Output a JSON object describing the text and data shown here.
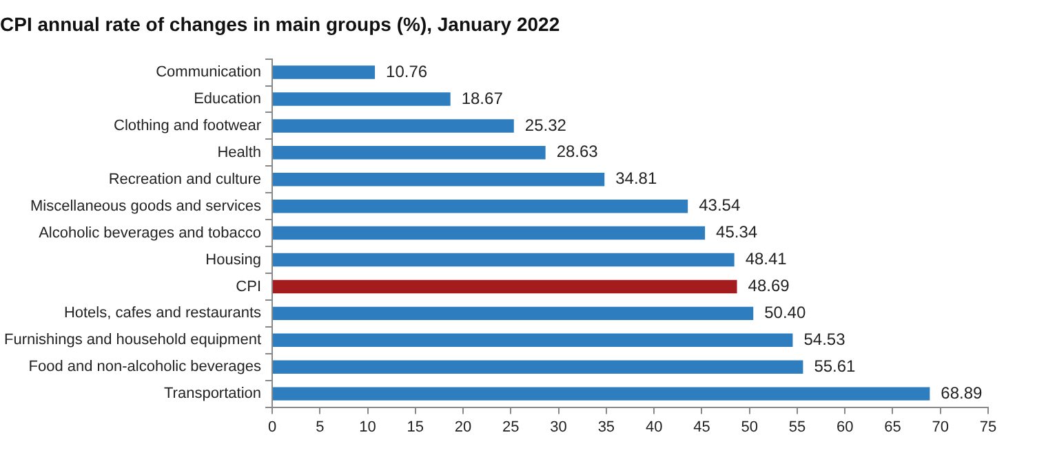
{
  "chart_data": {
    "type": "bar",
    "orientation": "horizontal",
    "title": "CPI annual rate of changes in main groups (%), January 2022",
    "categories": [
      "Communication",
      "Education",
      "Clothing and footwear",
      "Health",
      "Recreation and culture",
      "Miscellaneous goods and services",
      "Alcoholic beverages and tobacco",
      "Housing",
      "CPI",
      "Hotels, cafes and restaurants",
      "Furnishings and household equipment",
      "Food and non-alcoholic beverages",
      "Transportation"
    ],
    "values": [
      10.76,
      18.67,
      25.32,
      28.63,
      34.81,
      43.54,
      45.34,
      48.41,
      48.69,
      50.4,
      54.53,
      55.61,
      68.89
    ],
    "value_labels": [
      "10.76",
      "18.67",
      "25.32",
      "28.63",
      "34.81",
      "43.54",
      "45.34",
      "48.41",
      "48.69",
      "50.40",
      "54.53",
      "55.61",
      "68.89"
    ],
    "colors": [
      "#2e7ebf",
      "#2e7ebf",
      "#2e7ebf",
      "#2e7ebf",
      "#2e7ebf",
      "#2e7ebf",
      "#2e7ebf",
      "#2e7ebf",
      "#a51c1e",
      "#2e7ebf",
      "#2e7ebf",
      "#2e7ebf",
      "#2e7ebf"
    ],
    "xlim": [
      0,
      75
    ],
    "xticks": [
      0,
      5,
      10,
      15,
      20,
      25,
      30,
      35,
      40,
      45,
      50,
      55,
      60,
      65,
      70,
      75
    ],
    "grid": false,
    "legend": false
  }
}
